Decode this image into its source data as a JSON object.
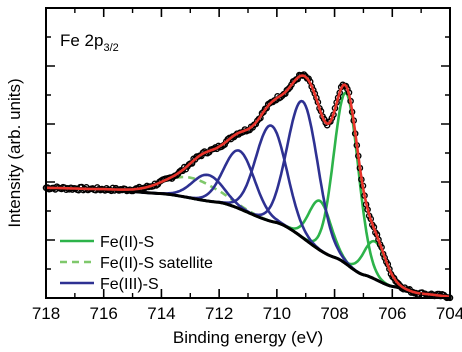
{
  "chart_data": {
    "type": "line",
    "panel_label": {
      "main": "Fe 2p",
      "subscript": "3/2"
    },
    "xlabel": "Binding energy (eV)",
    "ylabel": "Intensity (arb. units)",
    "xlim": [
      718,
      704
    ],
    "x_reversed": true,
    "ylim": [
      0,
      1
    ],
    "y_tick_labels_shown": false,
    "x_ticks": [
      718,
      716,
      714,
      712,
      710,
      708,
      706,
      704
    ],
    "x_tick_labels": [
      "718",
      "716",
      "714",
      "712",
      "710",
      "708",
      "706",
      "704"
    ],
    "background": {
      "name": "",
      "color": "#000000",
      "points": [
        [
          718,
          0.38
        ],
        [
          716,
          0.375
        ],
        [
          714,
          0.36
        ],
        [
          712,
          0.33
        ],
        [
          710,
          0.26
        ],
        [
          708,
          0.14
        ],
        [
          707,
          0.08
        ],
        [
          706,
          0.04
        ],
        [
          705,
          0.015
        ],
        [
          704,
          0.005
        ]
      ]
    },
    "peaks": [
      {
        "name": "Fe(II)-S",
        "color": "#2db34a",
        "style": "solid",
        "center": 707.6,
        "height": 0.59,
        "fwhm": 1.0
      },
      {
        "name": "Fe(II)-S",
        "color": "#2db34a",
        "style": "solid",
        "center": 708.5,
        "height": 0.17,
        "fwhm": 0.9
      },
      {
        "name": "Fe(II)-S",
        "color": "#2db34a",
        "style": "solid",
        "center": 706.6,
        "height": 0.13,
        "fwhm": 0.9
      },
      {
        "name": "Fe(II)-S satellite",
        "color": "#7fc86b",
        "style": "dashed",
        "center": 713.0,
        "height": 0.07,
        "fwhm": 2.2
      },
      {
        "name": "Fe(III)-S",
        "color": "#2e3192",
        "style": "solid",
        "center": 709.1,
        "height": 0.47,
        "fwhm": 1.25
      },
      {
        "name": "Fe(III)-S",
        "color": "#2e3192",
        "style": "solid",
        "center": 710.2,
        "height": 0.33,
        "fwhm": 1.25
      },
      {
        "name": "Fe(III)-S",
        "color": "#2e3192",
        "style": "solid",
        "center": 711.3,
        "height": 0.2,
        "fwhm": 1.25
      },
      {
        "name": "Fe(III)-S",
        "color": "#2e3192",
        "style": "solid",
        "center": 712.4,
        "height": 0.09,
        "fwhm": 1.25
      }
    ],
    "envelope": {
      "name": "",
      "color": "#e8332a"
    },
    "data_points": {
      "name": "",
      "color": "#000000",
      "marker": "circle"
    },
    "legend": {
      "placement": "bottom-left",
      "entries": [
        {
          "label": "Fe(II)-S",
          "color": "#2db34a",
          "style": "solid"
        },
        {
          "label": "Fe(II)-S satellite",
          "color": "#7fc86b",
          "style": "dashed"
        },
        {
          "label": "Fe(III)-S",
          "color": "#2e3192",
          "style": "solid"
        }
      ]
    },
    "grid": false
  }
}
